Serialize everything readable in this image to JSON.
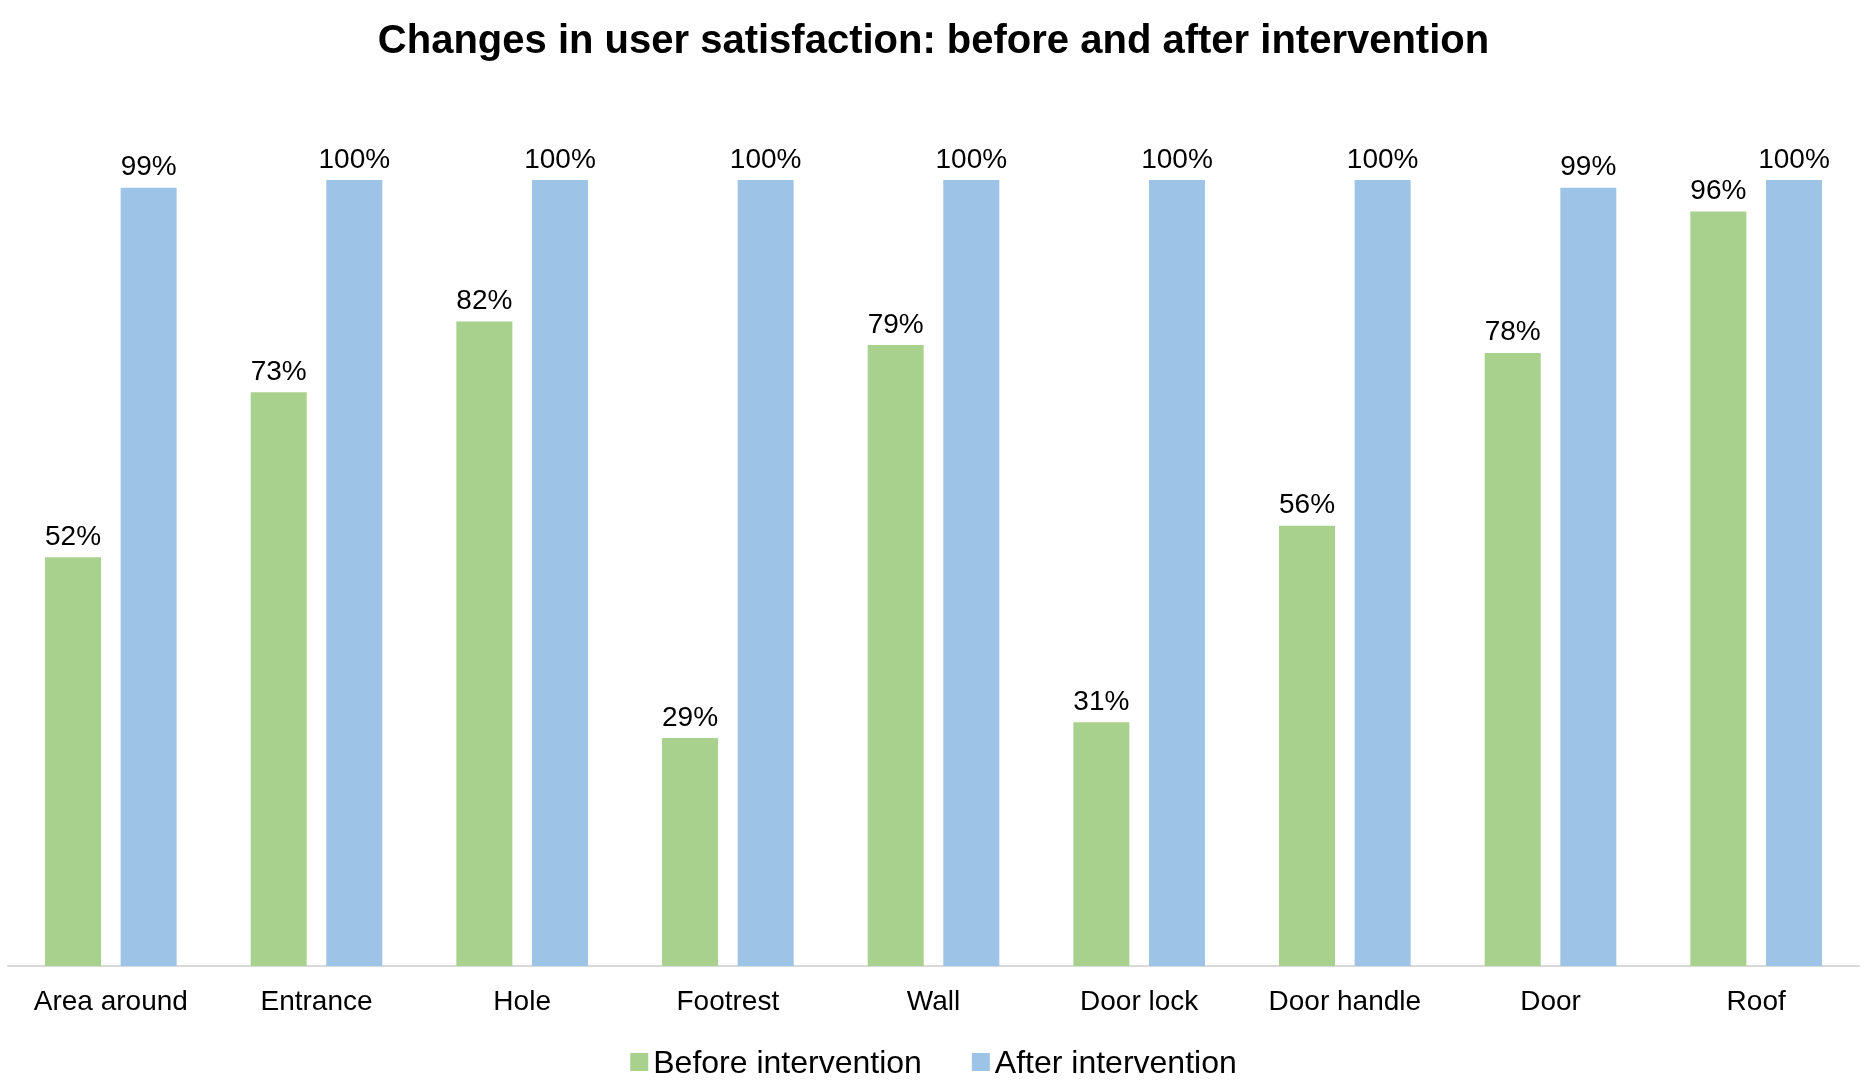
{
  "chart_data": {
    "type": "bar",
    "title": "Changes in user satisfaction: before and after intervention",
    "categories": [
      "Area around",
      "Entrance",
      "Hole",
      "Footrest",
      "Wall",
      "Door lock",
      "Door handle",
      "Door",
      "Roof"
    ],
    "series": [
      {
        "name": "Before intervention",
        "color": "#a9d18e",
        "values": [
          52,
          73,
          82,
          29,
          79,
          31,
          56,
          78,
          96
        ],
        "value_labels": [
          "52%",
          "73%",
          "82%",
          "29%",
          "79%",
          "31%",
          "56%",
          "78%",
          "96%"
        ]
      },
      {
        "name": "After intervention",
        "color": "#9dc3e6",
        "values": [
          99,
          100,
          100,
          100,
          100,
          100,
          100,
          99,
          100
        ],
        "value_labels": [
          "99%",
          "100%",
          "100%",
          "100%",
          "100%",
          "100%",
          "100%",
          "99%",
          "100%"
        ]
      }
    ],
    "legend": "bottom"
  }
}
